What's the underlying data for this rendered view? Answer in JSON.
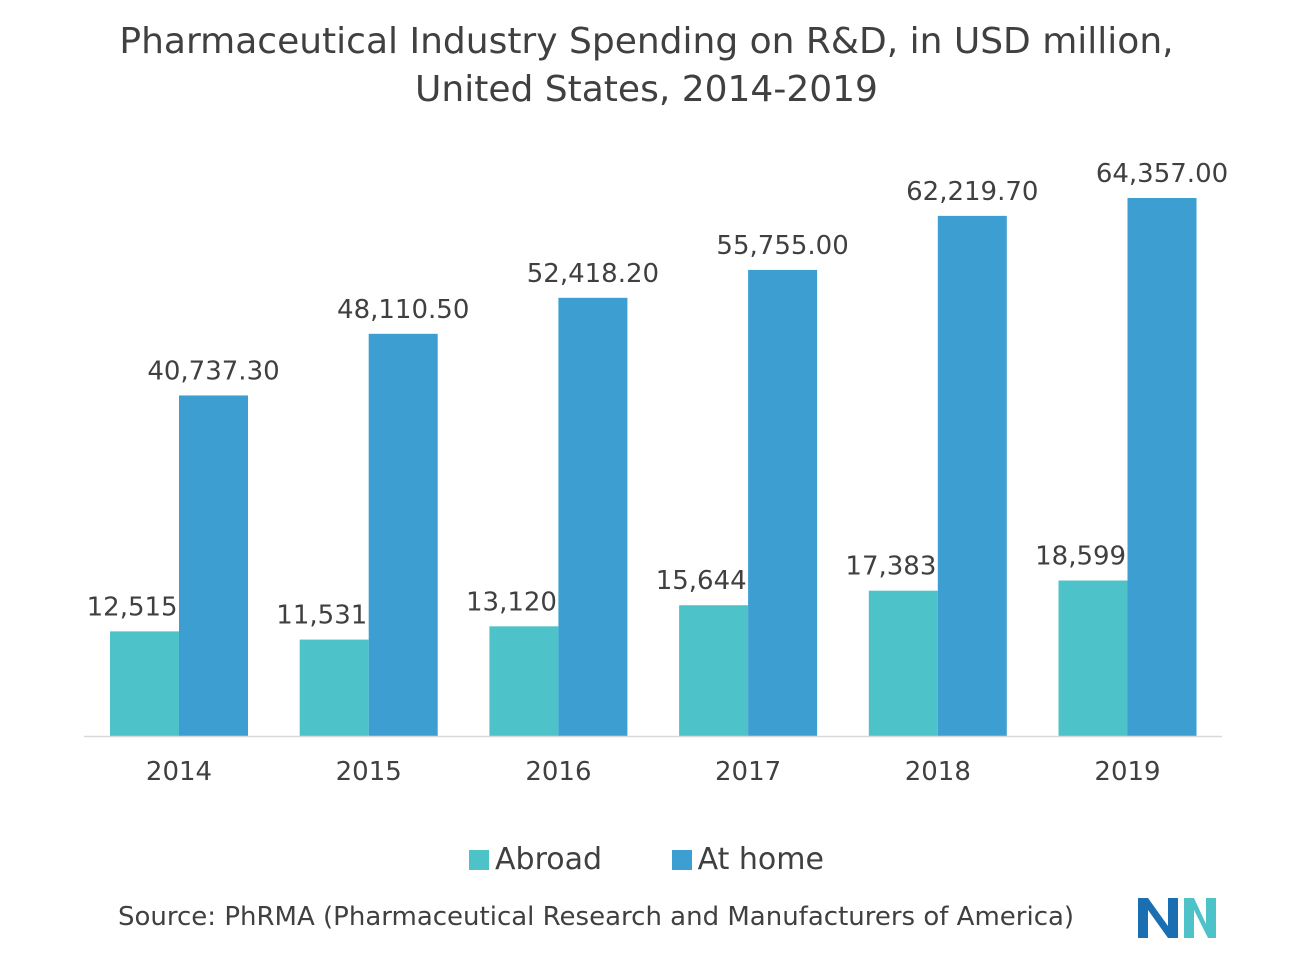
{
  "chart_data": {
    "type": "bar",
    "title_lines": [
      "Pharmaceutical Industry Spending on R&D, in USD million,",
      "United States, 2014-2019"
    ],
    "categories": [
      "2014",
      "2015",
      "2016",
      "2017",
      "2018",
      "2019"
    ],
    "series": [
      {
        "name": "Abroad",
        "color": "#4dc3c9",
        "values": [
          12515.9,
          11531.9,
          13120.1,
          15644.4,
          17383.1,
          18599.3
        ],
        "labels": [
          "12,515.9",
          "11,531.9",
          "13,120.1",
          "15,644.4",
          "17,383.1",
          "18,599.3"
        ]
      },
      {
        "name": "At home",
        "color": "#3d9fd1",
        "values": [
          40737.3,
          48110.5,
          52418.2,
          55755.0,
          62219.7,
          64357.0
        ],
        "labels": [
          "40,737.30",
          "48,110.50",
          "52,418.20",
          "55,755.00",
          "62,219.70",
          "64,357.00"
        ]
      }
    ],
    "xlabel": "",
    "ylabel": "",
    "ylim": [
      0,
      70000
    ],
    "grid": false,
    "legend_position": "bottom"
  },
  "source": "Source: PhRMA (Pharmaceutical Research and Manufacturers of America)",
  "logo": {
    "icon": "company-logo-icon",
    "colors": [
      "#1a6fb3",
      "#4dc3c9"
    ]
  }
}
